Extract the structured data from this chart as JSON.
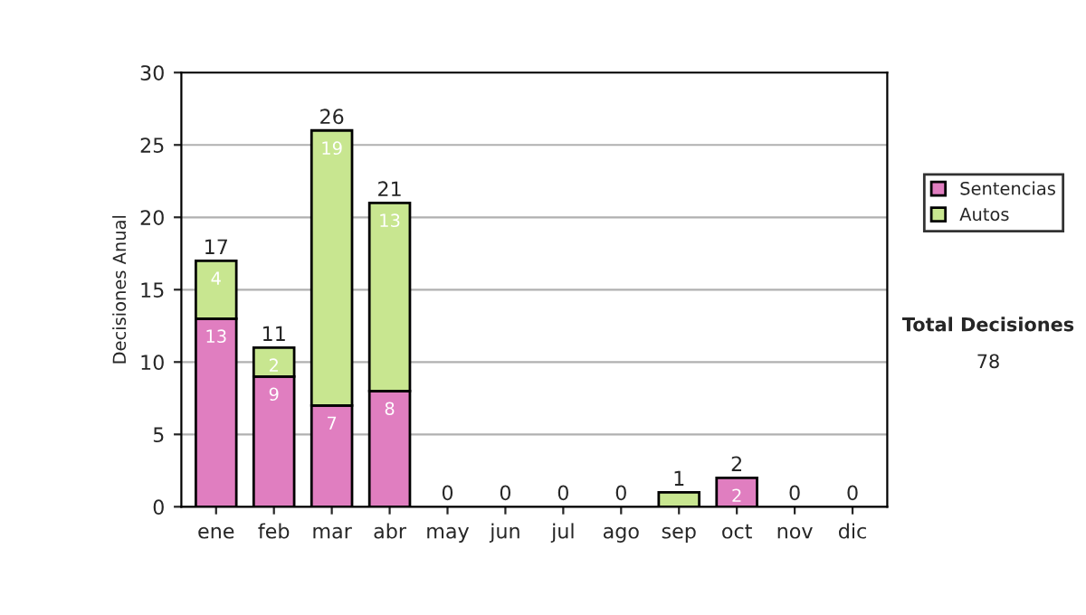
{
  "chart_data": {
    "type": "bar",
    "stacked": true,
    "ylabel": "Decisiones Anual",
    "categories": [
      "ene",
      "feb",
      "mar",
      "abr",
      "may",
      "jun",
      "jul",
      "ago",
      "sep",
      "oct",
      "nov",
      "dic"
    ],
    "series": [
      {
        "name": "Sentencias",
        "color": "#e07ec0",
        "values": [
          13,
          9,
          7,
          8,
          0,
          0,
          0,
          0,
          0,
          2,
          0,
          0
        ],
        "value_labels": [
          "13",
          "9",
          "7",
          "8",
          null,
          null,
          null,
          null,
          null,
          "2",
          null,
          null
        ]
      },
      {
        "name": "Autos",
        "color": "#c8e690",
        "values": [
          4,
          2,
          19,
          13,
          0,
          0,
          0,
          0,
          1,
          0,
          0,
          0
        ],
        "value_labels": [
          "4",
          "2",
          "19",
          "13",
          null,
          null,
          null,
          null,
          null,
          null,
          null,
          null
        ]
      }
    ],
    "totals": [
      "17",
      "11",
      "26",
      "21",
      "0",
      "0",
      "0",
      "0",
      "1",
      "2",
      "0",
      "0"
    ],
    "ylim": [
      0,
      30
    ],
    "yticks": [
      0,
      5,
      10,
      15,
      20,
      25,
      30
    ],
    "grid": "y",
    "legend": "right",
    "annotations": [
      "Total Decisiones",
      "78"
    ]
  }
}
